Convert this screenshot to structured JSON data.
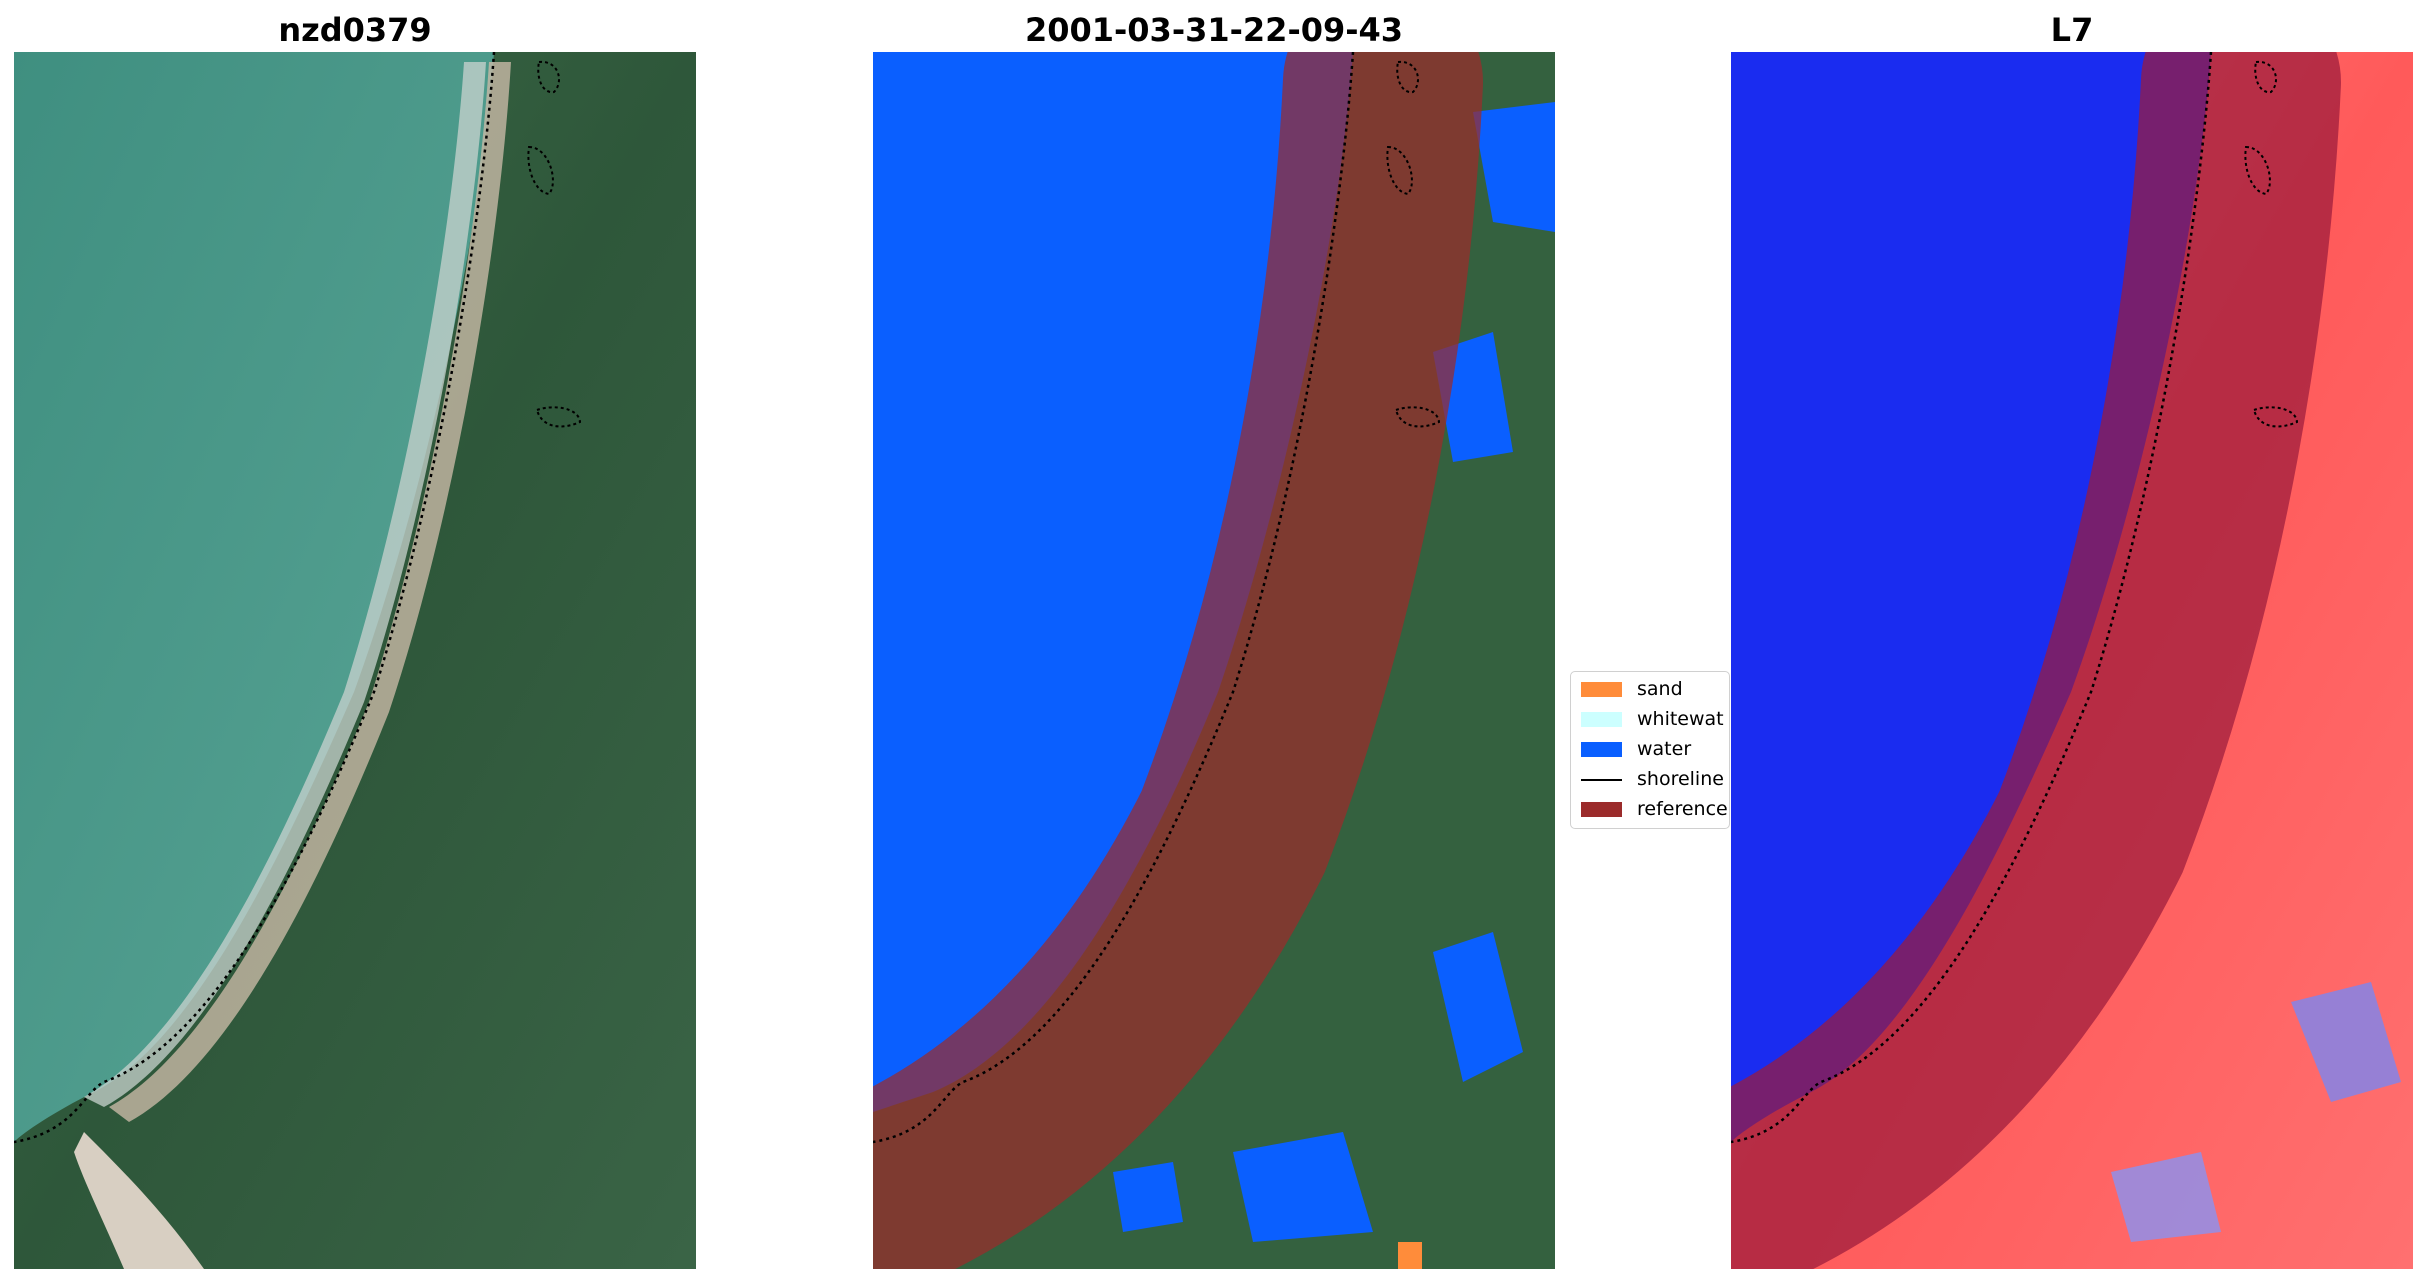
{
  "panels": [
    {
      "title": "nzd0379",
      "content": "RGB satellite image of a curved beach with vegetation"
    },
    {
      "title": "2001-03-31-22-09-43",
      "content": "Classified image (water, sand, whitewater) with reference buffer overlay"
    },
    {
      "title": "L7",
      "content": "Water index image (blue = water, red = land) with reference buffer overlay"
    }
  ],
  "legend": {
    "items": [
      {
        "label": "sand",
        "kind": "patch",
        "color": "#ff8c3a"
      },
      {
        "label": "whitewat",
        "kind": "patch",
        "color": "#ccffff"
      },
      {
        "label": "water",
        "kind": "patch",
        "color": "#0a5fff"
      },
      {
        "label": "shoreline",
        "kind": "line",
        "color": "#000000"
      },
      {
        "label": "reference",
        "kind": "patch",
        "color": "#9b2b2b"
      }
    ]
  },
  "colors": {
    "sea": "#4f9a8c",
    "vegetation": "#2f5a3c",
    "water_class": "#0a5fff",
    "reference_buffer": "#9b2b2b",
    "index_water": "#1a2cf0",
    "index_land": "#ff4a4a"
  }
}
